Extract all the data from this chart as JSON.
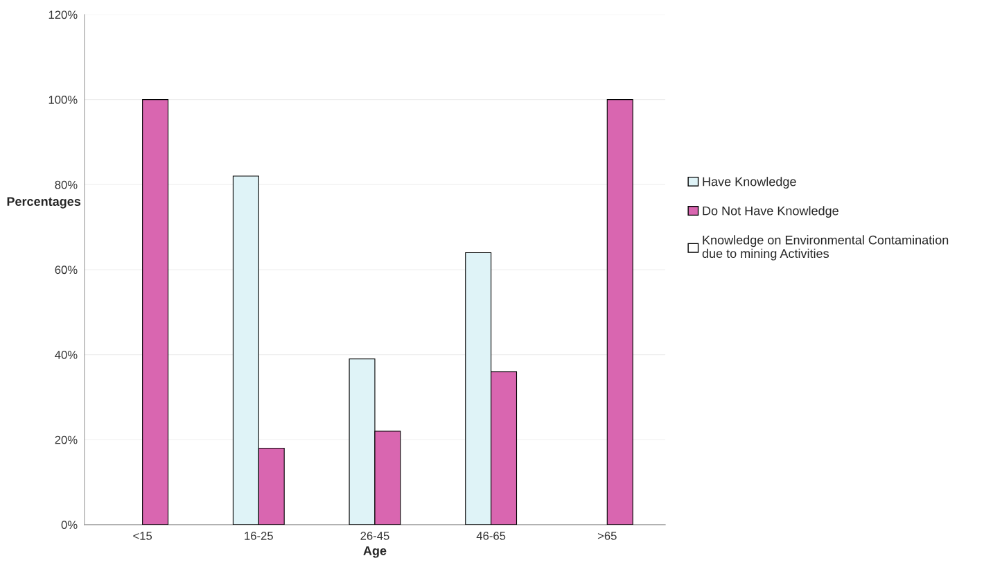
{
  "chart_data": {
    "type": "bar",
    "xlabel": "Age",
    "ylabel": "Percentages",
    "categories": [
      "<15",
      "16-25",
      "26-45",
      "46-65",
      ">65"
    ],
    "series": [
      {
        "name": "Have Knowledge",
        "color": "#dff3f7",
        "values": [
          null,
          82,
          39,
          64,
          null
        ]
      },
      {
        "name": "Do Not Have Knowledge",
        "color": "#d966b0",
        "values": [
          100,
          18,
          22,
          36,
          100
        ]
      },
      {
        "name": "Knowledge on Environmental Contamination\ndue to mining Activities",
        "color": "#ffffff",
        "values": [
          null,
          null,
          null,
          null,
          null
        ]
      }
    ],
    "ylim": [
      0,
      120
    ],
    "yticks": [
      {
        "value": 0,
        "label": "0%"
      },
      {
        "value": 20,
        "label": "20%"
      },
      {
        "value": 40,
        "label": "40%"
      },
      {
        "value": 60,
        "label": "60%"
      },
      {
        "value": 80,
        "label": "80%"
      },
      {
        "value": 100,
        "label": "100%"
      },
      {
        "value": 120,
        "label": "120%"
      }
    ],
    "grid": "y",
    "legend": "right"
  }
}
